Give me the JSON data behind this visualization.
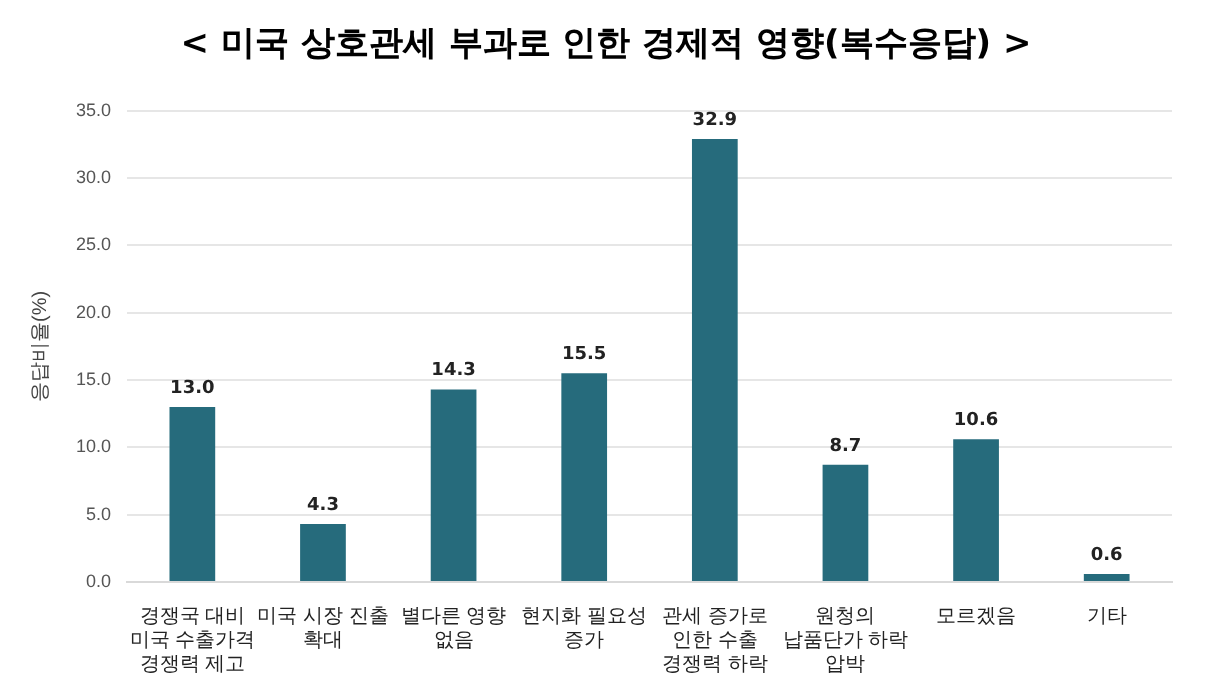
{
  "chart_data": {
    "type": "bar",
    "title": "< 미국 상호관세 부과로 인한 경제적 영향(복수응답) >",
    "ylabel": "응답비율(%)",
    "categories": [
      "경쟁국 대비 미국 수출가격 경쟁력 제고",
      "미국 시장 진출 확대",
      "별다른 영향 없음",
      "현지화 필요성 증가",
      "관세 증가로 인한 수출 경쟁력 하락",
      "원청의 납품단가 하락 압박",
      "모르겠음",
      "기타"
    ],
    "values": [
      13.0,
      4.3,
      14.3,
      15.5,
      32.9,
      8.7,
      10.6,
      0.6
    ],
    "value_labels": [
      "13.0",
      "4.3",
      "14.3",
      "15.5",
      "32.9",
      "8.7",
      "10.6",
      "0.6"
    ],
    "color": "#266b7c",
    "ylim": [
      0,
      35
    ],
    "yticks": [
      {
        "value": 0,
        "label": "0.0"
      },
      {
        "value": 5,
        "label": "5.0"
      },
      {
        "value": 10,
        "label": "10.0"
      },
      {
        "value": 15,
        "label": "15.0"
      },
      {
        "value": 20,
        "label": "20.0"
      },
      {
        "value": 25,
        "label": "25.0"
      },
      {
        "value": 30,
        "label": "30.0"
      },
      {
        "value": 35,
        "label": "35.0"
      }
    ],
    "grid": "y"
  }
}
